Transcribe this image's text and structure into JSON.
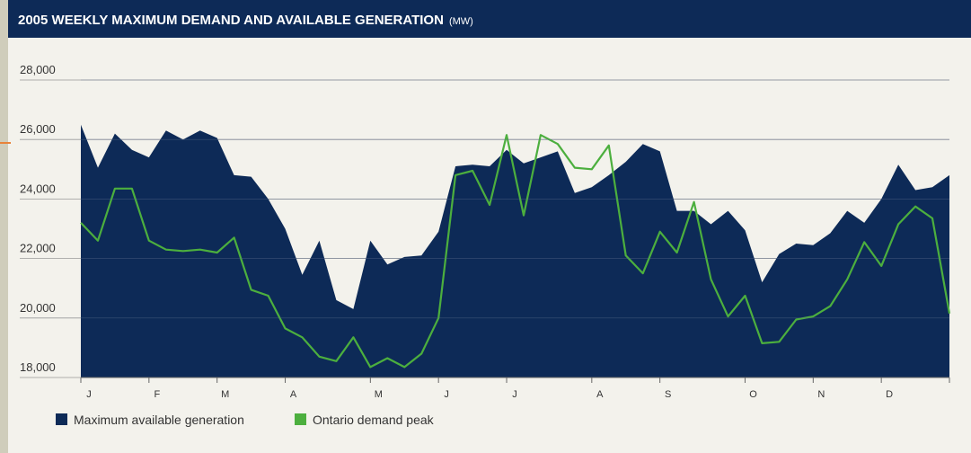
{
  "chart_data": {
    "type": "area_line",
    "title": "2005 WEEKLY MAXIMUM DEMAND AND AVAILABLE GENERATION",
    "title_unit": "(MW)",
    "categories": [
      "J",
      null,
      null,
      null,
      "F",
      null,
      null,
      null,
      "M",
      null,
      null,
      null,
      "A",
      null,
      null,
      null,
      null,
      "M",
      null,
      null,
      null,
      "J",
      null,
      null,
      null,
      "J",
      null,
      null,
      null,
      null,
      "A",
      null,
      null,
      null,
      "S",
      null,
      null,
      null,
      null,
      "O",
      null,
      null,
      null,
      "N",
      null,
      null,
      null,
      "D",
      null,
      null,
      null,
      null
    ],
    "series": [
      {
        "name": "Maximum available generation",
        "color": "#0d2a57",
        "values": [
          26500,
          25050,
          26200,
          25650,
          25400,
          26300,
          26000,
          26300,
          26050,
          24800,
          24750,
          24000,
          23000,
          21450,
          22600,
          20600,
          20300,
          22600,
          21800,
          22050,
          22100,
          22900,
          25100,
          25150,
          25100,
          25650,
          25200,
          25400,
          25600,
          24200,
          24400,
          24800,
          25250,
          25850,
          25600,
          23600,
          23600,
          23150,
          23600,
          22950,
          21200,
          22150,
          22500,
          22450,
          22850,
          23600,
          23200,
          24000,
          25150,
          24300,
          24400,
          24800
        ]
      },
      {
        "name": "Ontario demand peak",
        "color": "#4caf3e",
        "values": [
          23200,
          22600,
          24350,
          24350,
          22600,
          22300,
          22250,
          22300,
          22200,
          22700,
          20950,
          20750,
          19650,
          19350,
          18700,
          18550,
          19350,
          18350,
          18650,
          18350,
          18800,
          20000,
          24800,
          24950,
          23800,
          26150,
          23450,
          26150,
          25850,
          25050,
          25000,
          25800,
          22100,
          21500,
          22900,
          22200,
          23900,
          21300,
          20050,
          20750,
          19150,
          19200,
          19950,
          20050,
          20400,
          21300,
          22550,
          21750,
          23150,
          23750,
          23350,
          20150
        ]
      }
    ],
    "ylim": [
      18000,
      28000
    ],
    "yticks": [
      {
        "value": 18000,
        "label": "18,000"
      },
      {
        "value": 20000,
        "label": "20,000"
      },
      {
        "value": 22000,
        "label": "22,000"
      },
      {
        "value": 24000,
        "label": "24,000"
      },
      {
        "value": 26000,
        "label": "26,000"
      },
      {
        "value": 28000,
        "label": "28,000"
      }
    ],
    "grid": true
  }
}
